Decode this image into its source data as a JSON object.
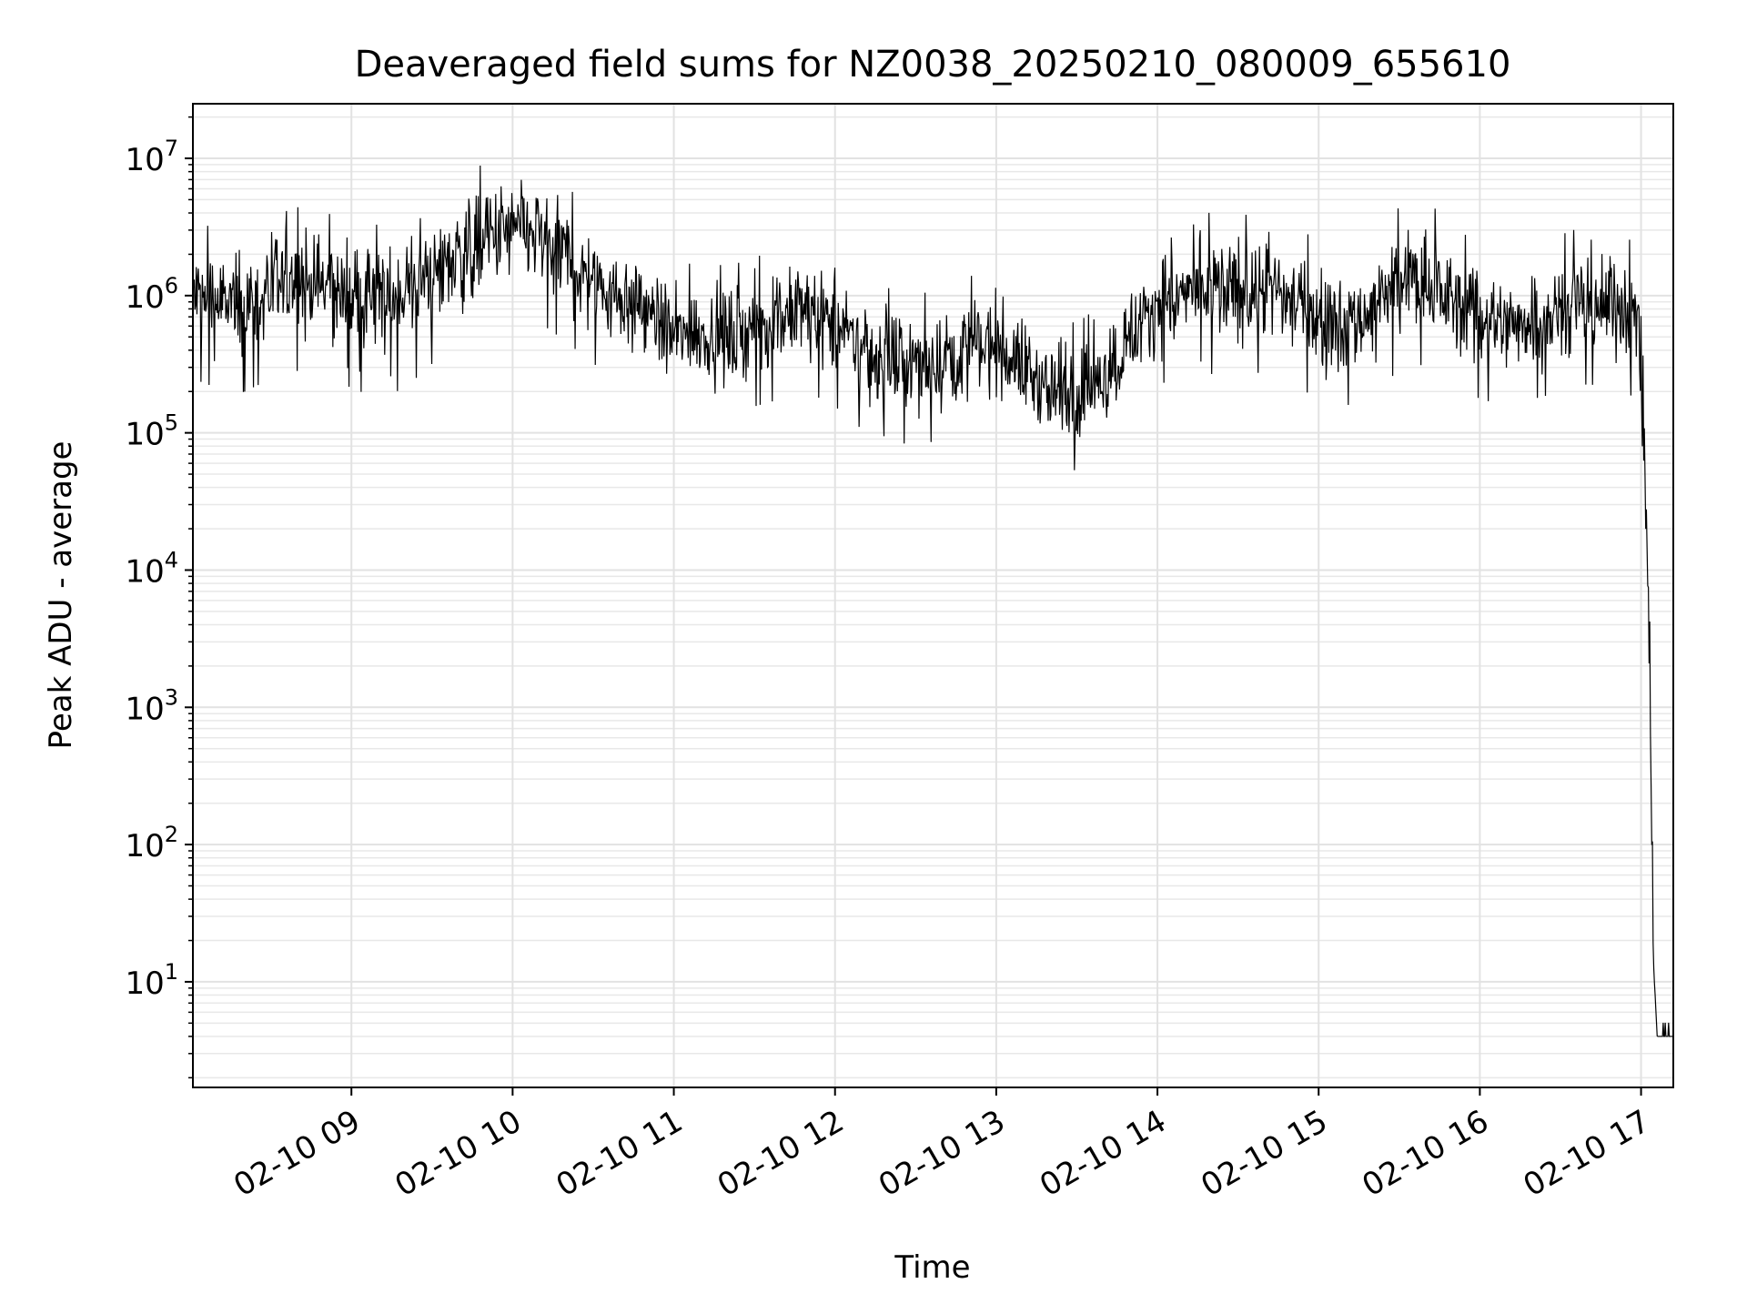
{
  "chart_data": {
    "type": "line",
    "title": "Deaveraged field sums for NZ0038_20250210_080009_655610",
    "xlabel": "Time",
    "ylabel": "Peak ADU - average",
    "y_scale": "log",
    "ylim": [
      1.7,
      25000000
    ],
    "xlim": [
      "02-10 08:01",
      "02-10 17:12"
    ],
    "grid": true,
    "line_color": "#000000",
    "x_ticks": [
      {
        "label": "02-10 09",
        "time": "02-10 09:00"
      },
      {
        "label": "02-10 10",
        "time": "02-10 10:00"
      },
      {
        "label": "02-10 11",
        "time": "02-10 11:00"
      },
      {
        "label": "02-10 12",
        "time": "02-10 12:00"
      },
      {
        "label": "02-10 13",
        "time": "02-10 13:00"
      },
      {
        "label": "02-10 14",
        "time": "02-10 14:00"
      },
      {
        "label": "02-10 15",
        "time": "02-10 15:00"
      },
      {
        "label": "02-10 16",
        "time": "02-10 16:00"
      },
      {
        "label": "02-10 17",
        "time": "02-10 17:00"
      }
    ],
    "y_ticks": [
      {
        "base": "10",
        "exp": "1",
        "value": 10
      },
      {
        "base": "10",
        "exp": "2",
        "value": 100
      },
      {
        "base": "10",
        "exp": "3",
        "value": 1000
      },
      {
        "base": "10",
        "exp": "4",
        "value": 10000
      },
      {
        "base": "10",
        "exp": "5",
        "value": 100000
      },
      {
        "base": "10",
        "exp": "6",
        "value": 1000000
      },
      {
        "base": "10",
        "exp": "7",
        "value": 10000000
      }
    ],
    "x": [
      "02-10 08:01",
      "02-10 08:10",
      "02-10 08:20",
      "02-10 08:30",
      "02-10 08:40",
      "02-10 08:50",
      "02-10 09:00",
      "02-10 09:10",
      "02-10 09:20",
      "02-10 09:30",
      "02-10 09:40",
      "02-10 09:50",
      "02-10 10:00",
      "02-10 10:10",
      "02-10 10:20",
      "02-10 10:30",
      "02-10 10:40",
      "02-10 10:50",
      "02-10 11:00",
      "02-10 11:10",
      "02-10 11:20",
      "02-10 11:30",
      "02-10 11:40",
      "02-10 11:50",
      "02-10 12:00",
      "02-10 12:10",
      "02-10 12:20",
      "02-10 12:30",
      "02-10 12:40",
      "02-10 12:50",
      "02-10 13:00",
      "02-10 13:10",
      "02-10 13:20",
      "02-10 13:30",
      "02-10 13:40",
      "02-10 13:50",
      "02-10 14:00",
      "02-10 14:10",
      "02-10 14:20",
      "02-10 14:30",
      "02-10 14:40",
      "02-10 14:50",
      "02-10 15:00",
      "02-10 15:10",
      "02-10 15:20",
      "02-10 15:30",
      "02-10 15:40",
      "02-10 15:50",
      "02-10 16:00",
      "02-10 16:10",
      "02-10 16:20",
      "02-10 16:30",
      "02-10 16:40",
      "02-10 16:50",
      "02-10 16:59",
      "02-10 17:00",
      "02-10 17:01",
      "02-10 17:02",
      "02-10 17:03",
      "02-10 17:04",
      "02-10 17:05",
      "02-10 17:06",
      "02-10 17:08",
      "02-10 17:12"
    ],
    "y": [
      1000000,
      900000,
      800000,
      1100000,
      1300000,
      1200000,
      1000000,
      900000,
      1100000,
      1500000,
      2000000,
      2500000,
      3000000,
      2800000,
      2000000,
      1300000,
      1000000,
      800000,
      500000,
      550000,
      500000,
      600000,
      700000,
      800000,
      600000,
      400000,
      350000,
      300000,
      350000,
      400000,
      450000,
      300000,
      200000,
      180000,
      250000,
      500000,
      900000,
      1000000,
      1100000,
      1000000,
      1200000,
      900000,
      700000,
      600000,
      800000,
      1200000,
      1300000,
      900000,
      700000,
      600000,
      700000,
      800000,
      900000,
      850000,
      700000,
      300000,
      80000,
      20000,
      3000,
      100,
      10,
      4,
      4,
      4
    ],
    "envelope_upper": [
      2500000,
      2600000,
      2600000,
      3000000,
      3500000,
      3200000,
      2800000,
      2600000,
      3200000,
      4000000,
      5500000,
      7500000,
      8500000,
      7000000,
      5000000,
      3200000,
      2500000,
      2000000,
      1300000,
      1400000,
      1300000,
      1500000,
      1800000,
      2000000,
      1600000,
      1100000,
      900000,
      800000,
      900000,
      1100000,
      1200000,
      800000,
      550000,
      500000,
      700000,
      1400000,
      2500000,
      3000000,
      3200000,
      3000000,
      3300000,
      2600000,
      2000000,
      1700000,
      2200000,
      3500000,
      4000000,
      2500000,
      1900000,
      1700000,
      2000000,
      2200000,
      2600000,
      2500000,
      1800000,
      800000,
      200000,
      50000,
      7000,
      300,
      10,
      4,
      4,
      4
    ],
    "envelope_lower": [
      350000,
      300000,
      280000,
      350000,
      400000,
      380000,
      300000,
      250000,
      300000,
      450000,
      600000,
      800000,
      1000000,
      900000,
      650000,
      450000,
      350000,
      280000,
      180000,
      200000,
      180000,
      220000,
      250000,
      280000,
      220000,
      150000,
      130000,
      110000,
      130000,
      150000,
      170000,
      110000,
      80000,
      75000,
      100000,
      180000,
      320000,
      350000,
      380000,
      350000,
      400000,
      320000,
      250000,
      220000,
      280000,
      400000,
      450000,
      320000,
      250000,
      220000,
      250000,
      280000,
      320000,
      300000,
      250000,
      100000,
      30000,
      8000,
      1000,
      30,
      8,
      4,
      4,
      4
    ]
  }
}
